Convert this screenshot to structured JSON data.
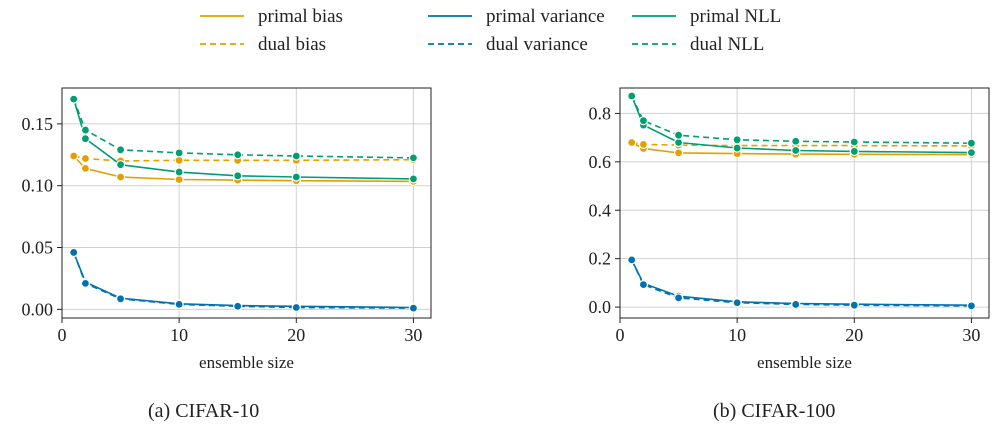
{
  "legend": [
    {
      "label": "primal bias",
      "color": "#E69F00",
      "dash": "solid"
    },
    {
      "label": "primal variance",
      "color": "#0072B2",
      "dash": "solid"
    },
    {
      "label": "primal NLL",
      "color": "#009E73",
      "dash": "solid"
    },
    {
      "label": "dual bias",
      "color": "#E69F00",
      "dash": "dashed"
    },
    {
      "label": "dual variance",
      "color": "#0072B2",
      "dash": "dashed"
    },
    {
      "label": "dual NLL",
      "color": "#009E73",
      "dash": "dashed"
    }
  ],
  "captions": [
    "(a) CIFAR-10",
    "(b) CIFAR-100"
  ],
  "chart_data": [
    {
      "type": "line",
      "xlabel": "ensemble size",
      "ylabel": "",
      "xlim": [
        0,
        31.5
      ],
      "ylim": [
        -0.007,
        0.179
      ],
      "xticks": [
        0,
        10,
        20,
        30
      ],
      "yticks": [
        0.0,
        0.05,
        0.1,
        0.15
      ],
      "ytick_labels": [
        "0.00",
        "0.05",
        "0.10",
        "0.15"
      ],
      "grid": true,
      "x": [
        1,
        2,
        5,
        10,
        15,
        20,
        30
      ],
      "series": [
        {
          "name": "primal bias",
          "values": [
            0.124,
            0.114,
            0.107,
            0.105,
            0.1045,
            0.104,
            0.1035
          ]
        },
        {
          "name": "dual bias",
          "values": [
            0.124,
            0.122,
            0.12,
            0.1205,
            0.1205,
            0.1205,
            0.121
          ]
        },
        {
          "name": "primal variance",
          "values": [
            0.046,
            0.022,
            0.009,
            0.0045,
            0.003,
            0.0025,
            0.0015
          ]
        },
        {
          "name": "dual variance",
          "values": [
            0.046,
            0.021,
            0.0085,
            0.004,
            0.0025,
            0.0015,
            0.001
          ]
        },
        {
          "name": "primal NLL",
          "values": [
            0.17,
            0.138,
            0.117,
            0.111,
            0.108,
            0.107,
            0.1055
          ]
        },
        {
          "name": "dual NLL",
          "values": [
            0.17,
            0.145,
            0.129,
            0.1265,
            0.125,
            0.124,
            0.1225
          ]
        }
      ]
    },
    {
      "type": "line",
      "xlabel": "ensemble size",
      "ylabel": "",
      "xlim": [
        0,
        31.5
      ],
      "ylim": [
        -0.045,
        0.905
      ],
      "xticks": [
        0,
        10,
        20,
        30
      ],
      "yticks": [
        0.0,
        0.2,
        0.4,
        0.6,
        0.8
      ],
      "ytick_labels": [
        "0.0",
        "0.2",
        "0.4",
        "0.6",
        "0.8"
      ],
      "grid": true,
      "x": [
        1,
        2,
        5,
        10,
        15,
        20,
        30
      ],
      "series": [
        {
          "name": "primal bias",
          "values": [
            0.68,
            0.655,
            0.637,
            0.634,
            0.632,
            0.631,
            0.63
          ]
        },
        {
          "name": "dual bias",
          "values": [
            0.68,
            0.672,
            0.669,
            0.667,
            0.667,
            0.667,
            0.666
          ]
        },
        {
          "name": "primal variance",
          "values": [
            0.195,
            0.098,
            0.045,
            0.022,
            0.015,
            0.012,
            0.008
          ]
        },
        {
          "name": "dual variance",
          "values": [
            0.195,
            0.093,
            0.038,
            0.018,
            0.011,
            0.008,
            0.005
          ]
        },
        {
          "name": "primal NLL",
          "values": [
            0.872,
            0.752,
            0.68,
            0.657,
            0.647,
            0.643,
            0.638
          ]
        },
        {
          "name": "dual NLL",
          "values": [
            0.872,
            0.77,
            0.71,
            0.691,
            0.685,
            0.682,
            0.677
          ]
        }
      ]
    }
  ]
}
